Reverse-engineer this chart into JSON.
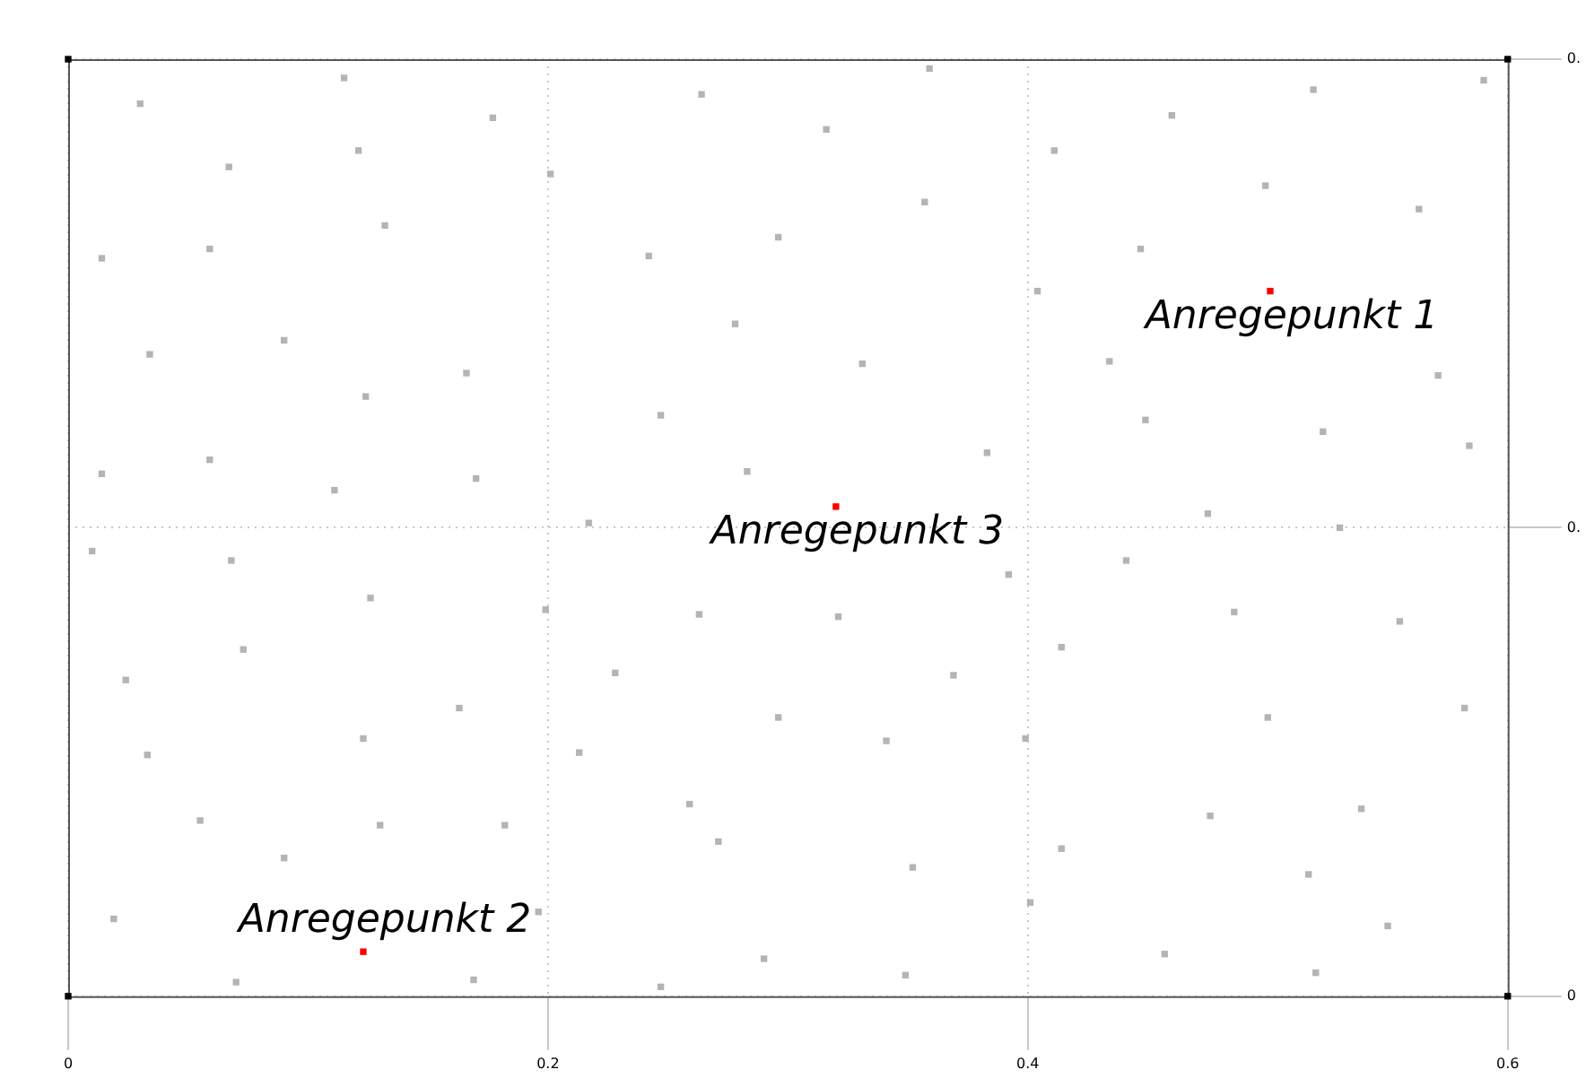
{
  "chart_data": {
    "type": "scatter",
    "xlim": [
      0,
      0.6
    ],
    "ylim": [
      0,
      0.4
    ],
    "xticks": [
      0,
      0.2,
      0.4,
      0.6
    ],
    "yticks": [
      0,
      {
        "value": 0.2,
        "label": "0."
      },
      {
        "value": 0.4,
        "label": "0."
      }
    ],
    "grid": true,
    "legend": false,
    "marker": "square",
    "series": [
      {
        "color": "#b4b4b4",
        "x": [
          0.03,
          0.115,
          0.177,
          0.264,
          0.359,
          0.316,
          0.067,
          0.121,
          0.201,
          0.411,
          0.46,
          0.519,
          0.59,
          0.499,
          0.357,
          0.132,
          0.014,
          0.059,
          0.296,
          0.242,
          0.447,
          0.563,
          0.404,
          0.09,
          0.034,
          0.166,
          0.124,
          0.278,
          0.331,
          0.434,
          0.571,
          0.247,
          0.449,
          0.523,
          0.584,
          0.383,
          0.014,
          0.059,
          0.111,
          0.17,
          0.283,
          0.217,
          0.475,
          0.53,
          0.01,
          0.068,
          0.392,
          0.441,
          0.126,
          0.199,
          0.263,
          0.321,
          0.486,
          0.555,
          0.024,
          0.073,
          0.228,
          0.369,
          0.414,
          0.163,
          0.296,
          0.5,
          0.582,
          0.033,
          0.123,
          0.341,
          0.213,
          0.399,
          0.055,
          0.13,
          0.182,
          0.259,
          0.476,
          0.539,
          0.09,
          0.271,
          0.352,
          0.414,
          0.517,
          0.019,
          0.196,
          0.401,
          0.55,
          0.07,
          0.169,
          0.247,
          0.29,
          0.349,
          0.457,
          0.52
        ],
        "values": [
          0.381,
          0.392,
          0.375,
          0.385,
          0.396,
          0.37,
          0.354,
          0.361,
          0.351,
          0.361,
          0.376,
          0.387,
          0.391,
          0.346,
          0.339,
          0.329,
          0.315,
          0.319,
          0.324,
          0.316,
          0.319,
          0.336,
          0.301,
          0.28,
          0.274,
          0.266,
          0.256,
          0.287,
          0.27,
          0.271,
          0.265,
          0.248,
          0.246,
          0.241,
          0.235,
          0.232,
          0.223,
          0.229,
          0.216,
          0.221,
          0.224,
          0.202,
          0.206,
          0.2,
          0.19,
          0.186,
          0.18,
          0.186,
          0.17,
          0.165,
          0.163,
          0.162,
          0.164,
          0.16,
          0.135,
          0.148,
          0.138,
          0.137,
          0.149,
          0.123,
          0.119,
          0.119,
          0.123,
          0.103,
          0.11,
          0.109,
          0.104,
          0.11,
          0.075,
          0.073,
          0.073,
          0.082,
          0.077,
          0.08,
          0.059,
          0.066,
          0.055,
          0.063,
          0.052,
          0.033,
          0.036,
          0.04,
          0.03,
          0.006,
          0.007,
          0.004,
          0.016,
          0.009,
          0.018,
          0.01
        ]
      },
      {
        "color": "#ff0000",
        "x": [
          0.501,
          0.123,
          0.32
        ],
        "values": [
          0.301,
          0.019,
          0.209
        ]
      },
      {
        "color": "#000000",
        "x": [
          0,
          0.6,
          0,
          0.6
        ],
        "values": [
          0,
          0,
          0.4,
          0.4
        ]
      }
    ],
    "annotations": [
      {
        "text": "Anregepunkt 1",
        "x": 0.501,
        "y": 0.301
      },
      {
        "text": "Anregepunkt 2",
        "x": 0.123,
        "y": 0.019
      },
      {
        "text": "Anregepunkt 3",
        "x": 0.32,
        "y": 0.209
      }
    ]
  }
}
